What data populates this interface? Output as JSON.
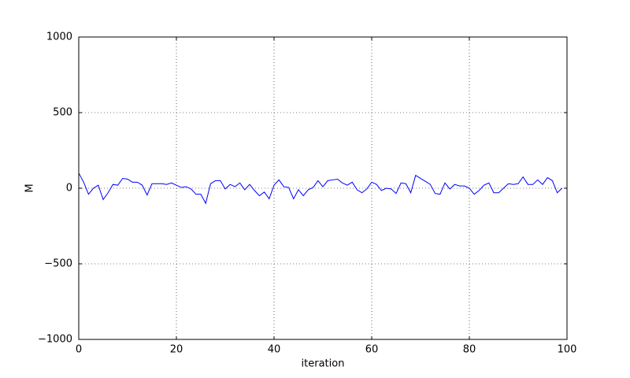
{
  "chart_data": {
    "type": "line",
    "xlabel": "iteration",
    "ylabel": "M",
    "color": "#0000ff",
    "grid": true,
    "xlim": [
      0,
      100
    ],
    "xticks": [
      0,
      20,
      40,
      60,
      80,
      100
    ],
    "ylim": [
      -1000,
      1000
    ],
    "yticks": [
      {
        "value": -1000,
        "label": "−1000"
      },
      {
        "value": -500,
        "label": "−500"
      },
      0,
      500,
      1000
    ],
    "x": [
      0,
      1,
      2,
      3,
      4,
      5,
      6,
      7,
      8,
      9,
      10,
      11,
      12,
      13,
      14,
      15,
      16,
      17,
      18,
      19,
      20,
      21,
      22,
      23,
      24,
      25,
      26,
      27,
      28,
      29,
      30,
      31,
      32,
      33,
      34,
      35,
      36,
      37,
      38,
      39,
      40,
      41,
      42,
      43,
      44,
      45,
      46,
      47,
      48,
      49,
      50,
      51,
      52,
      53,
      54,
      55,
      56,
      57,
      58,
      59,
      60,
      61,
      62,
      63,
      64,
      65,
      66,
      67,
      68,
      69,
      70,
      71,
      72,
      73,
      74,
      75,
      76,
      77,
      78,
      79,
      80,
      81,
      82,
      83,
      84,
      85,
      86,
      87,
      88,
      89,
      90,
      91,
      92,
      93,
      94,
      95,
      96,
      97,
      98,
      99
    ],
    "values": [
      100,
      40,
      -40,
      0,
      20,
      -75,
      -30,
      25,
      20,
      65,
      60,
      40,
      40,
      20,
      -45,
      30,
      30,
      30,
      25,
      35,
      20,
      5,
      10,
      -5,
      -40,
      -40,
      -100,
      30,
      50,
      50,
      -5,
      25,
      10,
      35,
      -10,
      25,
      -15,
      -50,
      -25,
      -70,
      20,
      55,
      10,
      5,
      -70,
      -10,
      -50,
      -10,
      5,
      50,
      10,
      50,
      55,
      60,
      35,
      20,
      40,
      -10,
      -30,
      -5,
      40,
      25,
      -15,
      0,
      -5,
      -35,
      35,
      30,
      -30,
      85,
      65,
      45,
      25,
      -35,
      -40,
      35,
      -5,
      25,
      15,
      15,
      0,
      -40,
      -15,
      20,
      35,
      -30,
      -30,
      0,
      30,
      25,
      30,
      75,
      25,
      25,
      55,
      25,
      70,
      50,
      -30,
      0
    ]
  }
}
